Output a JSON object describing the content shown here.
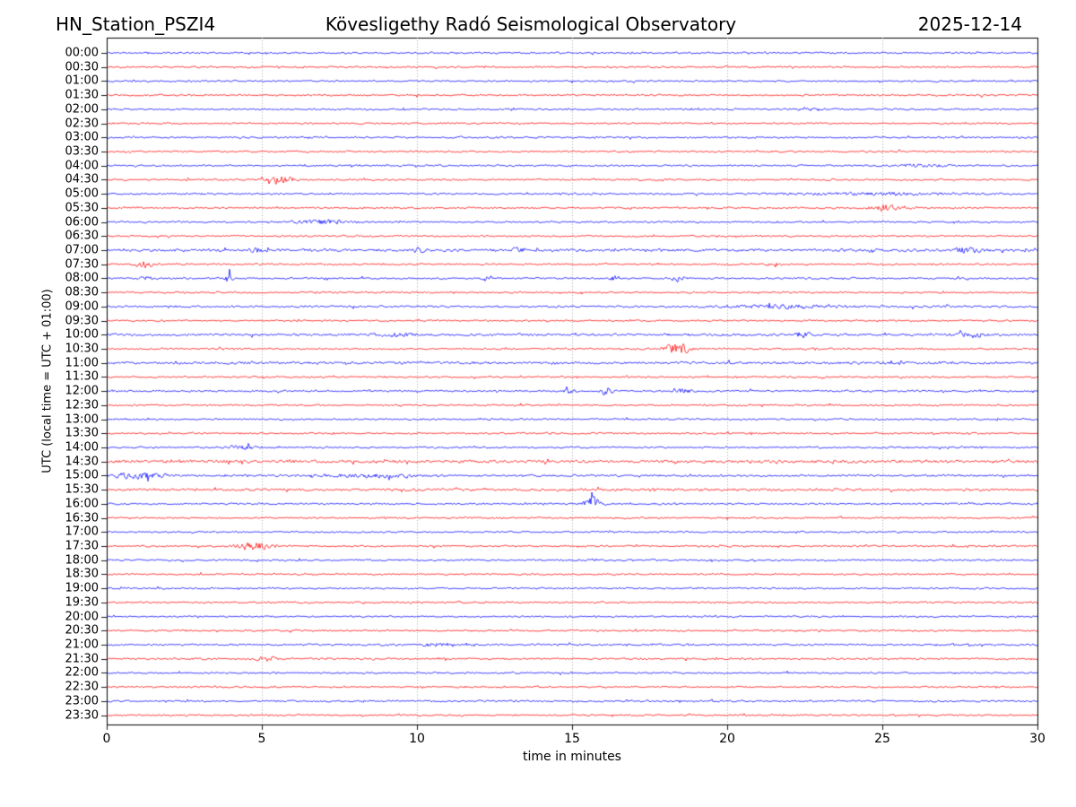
{
  "header": {
    "station": "HN_Station_PSZI4",
    "title": "Kövesligethy Radó Seismological Observatory",
    "date": "2025-12-14"
  },
  "chart_data": {
    "type": "line",
    "subtype": "helicorder-seismogram",
    "title": "Kövesligethy Radó Seismological Observatory",
    "station": "HN_Station_PSZI4",
    "date": "2025-12-14",
    "xlabel": "time in minutes",
    "ylabel": "UTC (local time = UTC + 01:00)",
    "x_range": [
      0,
      30
    ],
    "x_ticks": [
      0,
      5,
      10,
      15,
      20,
      25,
      30
    ],
    "x_gridlines": [
      5,
      10,
      15,
      20,
      25
    ],
    "grid_style": "vertical dotted gray lines every 5 minutes",
    "row_interval_minutes": 30,
    "colors": {
      "hour_rows": "#0000ff",
      "half_hour_rows": "#ff0000",
      "grid": "#999999",
      "axis": "#000000"
    },
    "event_fields": "events: t = center time in minutes, a = peak amplitude in px, w = approx duration in minutes; noise = relative background noise level",
    "rows": [
      {
        "time": "00:00",
        "color": "#0000ff",
        "noise": 1.0,
        "events": []
      },
      {
        "time": "00:30",
        "color": "#ff0000",
        "noise": 1.0,
        "events": []
      },
      {
        "time": "01:00",
        "color": "#0000ff",
        "noise": 1.0,
        "events": []
      },
      {
        "time": "01:30",
        "color": "#ff0000",
        "noise": 1.05,
        "events": []
      },
      {
        "time": "02:00",
        "color": "#0000ff",
        "noise": 1.0,
        "events": [
          {
            "t": 22.8,
            "a": 1.6,
            "w": 1.0
          }
        ]
      },
      {
        "time": "02:30",
        "color": "#ff0000",
        "noise": 1.0,
        "events": []
      },
      {
        "time": "03:00",
        "color": "#0000ff",
        "noise": 1.0,
        "events": []
      },
      {
        "time": "03:30",
        "color": "#ff0000",
        "noise": 1.0,
        "events": []
      },
      {
        "time": "04:00",
        "color": "#0000ff",
        "noise": 1.0,
        "events": [
          {
            "t": 26.3,
            "a": 1.7,
            "w": 1.6
          }
        ]
      },
      {
        "time": "04:30",
        "color": "#ff0000",
        "noise": 1.0,
        "events": [
          {
            "t": 5.6,
            "a": 5.5,
            "w": 0.8
          }
        ]
      },
      {
        "time": "05:00",
        "color": "#0000ff",
        "noise": 1.05,
        "events": [
          {
            "t": 24.5,
            "a": 1.5,
            "w": 6.0
          }
        ]
      },
      {
        "time": "05:30",
        "color": "#ff0000",
        "noise": 1.0,
        "events": [
          {
            "t": 25.1,
            "a": 4.0,
            "w": 0.9
          }
        ]
      },
      {
        "time": "06:00",
        "color": "#0000ff",
        "noise": 1.0,
        "events": [
          {
            "t": 6.9,
            "a": 2.6,
            "w": 2.0
          }
        ]
      },
      {
        "time": "06:30",
        "color": "#ff0000",
        "noise": 1.0,
        "events": []
      },
      {
        "time": "07:00",
        "color": "#0000ff",
        "noise": 1.6,
        "events": [
          {
            "t": 4.9,
            "a": 2.2,
            "w": 0.5
          },
          {
            "t": 10.1,
            "a": 2.4,
            "w": 0.45
          },
          {
            "t": 13.3,
            "a": 2.8,
            "w": 0.5
          },
          {
            "t": 27.7,
            "a": 3.2,
            "w": 0.8
          }
        ]
      },
      {
        "time": "07:30",
        "color": "#ff0000",
        "noise": 1.05,
        "events": [
          {
            "t": 1.2,
            "a": 4.5,
            "w": 0.7
          },
          {
            "t": 21.5,
            "a": 1.8,
            "w": 0.5
          }
        ]
      },
      {
        "time": "08:00",
        "color": "#0000ff",
        "noise": 1.0,
        "events": [
          {
            "t": 1.3,
            "a": 2.2,
            "w": 0.3
          },
          {
            "t": 3.9,
            "a": 4.8,
            "w": 0.3
          },
          {
            "t": 12.3,
            "a": 3.2,
            "w": 0.4
          },
          {
            "t": 16.4,
            "a": 3.2,
            "w": 0.35
          },
          {
            "t": 18.4,
            "a": 3.8,
            "w": 0.4
          }
        ]
      },
      {
        "time": "08:30",
        "color": "#ff0000",
        "noise": 1.0,
        "events": []
      },
      {
        "time": "09:00",
        "color": "#0000ff",
        "noise": 1.15,
        "events": [
          {
            "t": 22.0,
            "a": 2.0,
            "w": 3.5
          }
        ]
      },
      {
        "time": "09:30",
        "color": "#ff0000",
        "noise": 1.0,
        "events": []
      },
      {
        "time": "10:00",
        "color": "#0000ff",
        "noise": 1.35,
        "events": [
          {
            "t": 9.3,
            "a": 1.8,
            "w": 1.2
          },
          {
            "t": 22.4,
            "a": 4.2,
            "w": 0.45
          },
          {
            "t": 27.9,
            "a": 3.2,
            "w": 0.7
          }
        ]
      },
      {
        "time": "10:30",
        "color": "#ff0000",
        "noise": 1.0,
        "events": [
          {
            "t": 18.4,
            "a": 7.5,
            "w": 0.8
          }
        ]
      },
      {
        "time": "11:00",
        "color": "#0000ff",
        "noise": 1.45,
        "events": []
      },
      {
        "time": "11:30",
        "color": "#ff0000",
        "noise": 1.0,
        "events": []
      },
      {
        "time": "12:00",
        "color": "#0000ff",
        "noise": 1.05,
        "events": [
          {
            "t": 14.9,
            "a": 2.8,
            "w": 0.4
          },
          {
            "t": 16.15,
            "a": 4.3,
            "w": 0.4
          },
          {
            "t": 18.6,
            "a": 2.8,
            "w": 0.45
          }
        ]
      },
      {
        "time": "12:30",
        "color": "#ff0000",
        "noise": 1.0,
        "events": []
      },
      {
        "time": "13:00",
        "color": "#0000ff",
        "noise": 1.0,
        "events": []
      },
      {
        "time": "13:30",
        "color": "#ff0000",
        "noise": 1.0,
        "events": []
      },
      {
        "time": "14:00",
        "color": "#0000ff",
        "noise": 1.0,
        "events": [
          {
            "t": 4.3,
            "a": 2.4,
            "w": 0.9
          }
        ]
      },
      {
        "time": "14:30",
        "color": "#ff0000",
        "noise": 1.65,
        "events": []
      },
      {
        "time": "15:00",
        "color": "#0000ff",
        "noise": 1.25,
        "events": [
          {
            "t": 1.0,
            "a": 3.4,
            "w": 1.8
          },
          {
            "t": 8.6,
            "a": 2.0,
            "w": 2.4
          }
        ]
      },
      {
        "time": "15:30",
        "color": "#ff0000",
        "noise": 1.45,
        "events": []
      },
      {
        "time": "16:00",
        "color": "#0000ff",
        "noise": 1.0,
        "events": [
          {
            "t": 15.65,
            "a": 8.5,
            "w": 0.5
          }
        ]
      },
      {
        "time": "16:30",
        "color": "#ff0000",
        "noise": 1.0,
        "events": []
      },
      {
        "time": "17:00",
        "color": "#0000ff",
        "noise": 1.0,
        "events": []
      },
      {
        "time": "17:30",
        "color": "#ff0000",
        "noise": 1.0,
        "events": [
          {
            "t": 4.75,
            "a": 4.5,
            "w": 1.1
          }
        ]
      },
      {
        "time": "18:00",
        "color": "#0000ff",
        "noise": 1.0,
        "events": []
      },
      {
        "time": "18:30",
        "color": "#ff0000",
        "noise": 1.0,
        "events": []
      },
      {
        "time": "19:00",
        "color": "#0000ff",
        "noise": 1.0,
        "events": []
      },
      {
        "time": "19:30",
        "color": "#ff0000",
        "noise": 1.0,
        "events": []
      },
      {
        "time": "20:00",
        "color": "#0000ff",
        "noise": 1.0,
        "events": []
      },
      {
        "time": "20:30",
        "color": "#ff0000",
        "noise": 1.0,
        "events": []
      },
      {
        "time": "21:00",
        "color": "#0000ff",
        "noise": 1.1,
        "events": [
          {
            "t": 10.6,
            "a": 2.4,
            "w": 0.6
          }
        ]
      },
      {
        "time": "21:30",
        "color": "#ff0000",
        "noise": 1.05,
        "events": [
          {
            "t": 5.2,
            "a": 3.0,
            "w": 0.7
          }
        ]
      },
      {
        "time": "22:00",
        "color": "#0000ff",
        "noise": 1.0,
        "events": []
      },
      {
        "time": "22:30",
        "color": "#ff0000",
        "noise": 1.0,
        "events": []
      },
      {
        "time": "23:00",
        "color": "#0000ff",
        "noise": 1.05,
        "events": []
      },
      {
        "time": "23:30",
        "color": "#ff0000",
        "noise": 1.0,
        "events": []
      }
    ]
  }
}
